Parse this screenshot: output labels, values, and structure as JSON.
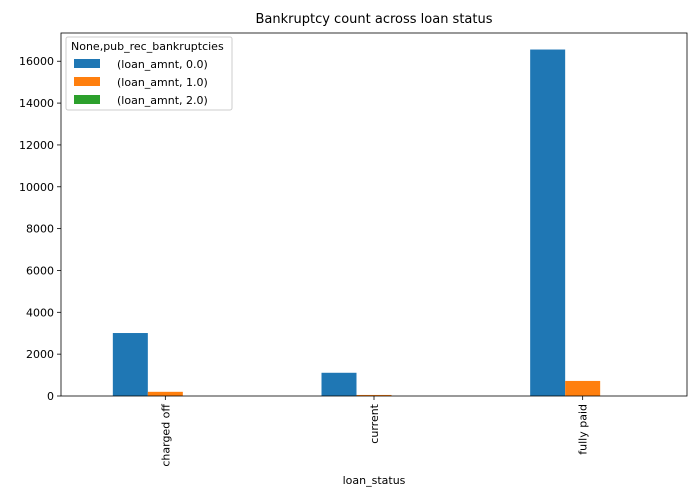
{
  "chart_data": {
    "type": "bar",
    "title": "Bankruptcy count across loan status",
    "xlabel": "loan_status",
    "ylabel": "",
    "categories": [
      "charged off",
      "current",
      "fully paid"
    ],
    "series": [
      {
        "name": "(loan_amnt, 0.0)",
        "color": "#1f77b4",
        "values": [
          3010,
          1110,
          16560
        ]
      },
      {
        "name": "(loan_amnt, 1.0)",
        "color": "#ff7f0e",
        "values": [
          200,
          50,
          720
        ]
      },
      {
        "name": "(loan_amnt, 2.0)",
        "color": "#2ca02c",
        "values": [
          0,
          0,
          0
        ]
      }
    ],
    "ylim": [
      0,
      17350
    ],
    "yticks": [
      0,
      2000,
      4000,
      6000,
      8000,
      10000,
      12000,
      14000,
      16000
    ],
    "legend": {
      "title": "None,pub_rec_bankruptcies",
      "placement": "top-left"
    },
    "grid": false
  }
}
